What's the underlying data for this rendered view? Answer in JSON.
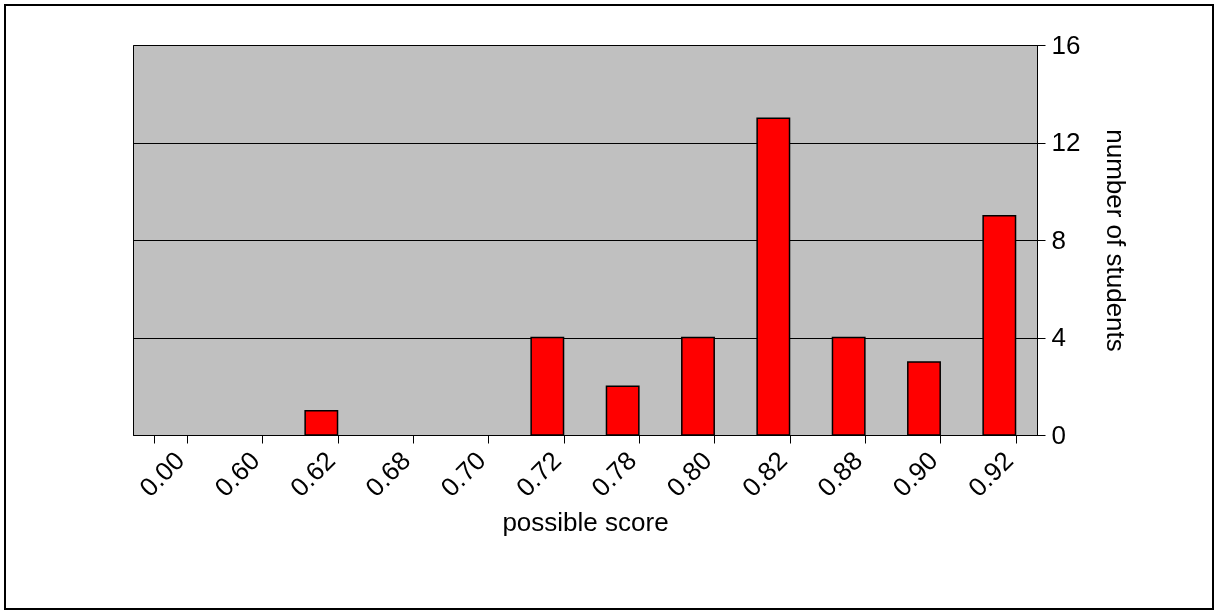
{
  "chart_data": {
    "type": "bar",
    "xlabel": "possible score",
    "ylabel": "number of students",
    "categories": [
      "0.00",
      "0.60",
      "0.62",
      "0.68",
      "0.70",
      "0.72",
      "0.78",
      "0.80",
      "0.82",
      "0.88",
      "0.90",
      "0.92"
    ],
    "values": [
      0,
      0,
      1,
      0,
      0,
      4,
      2,
      4,
      13,
      4,
      3,
      9
    ],
    "color": "#ff0000",
    "ylim": [
      0,
      16
    ],
    "yticks": [
      0,
      4,
      8,
      12,
      16
    ],
    "grid": "y"
  }
}
